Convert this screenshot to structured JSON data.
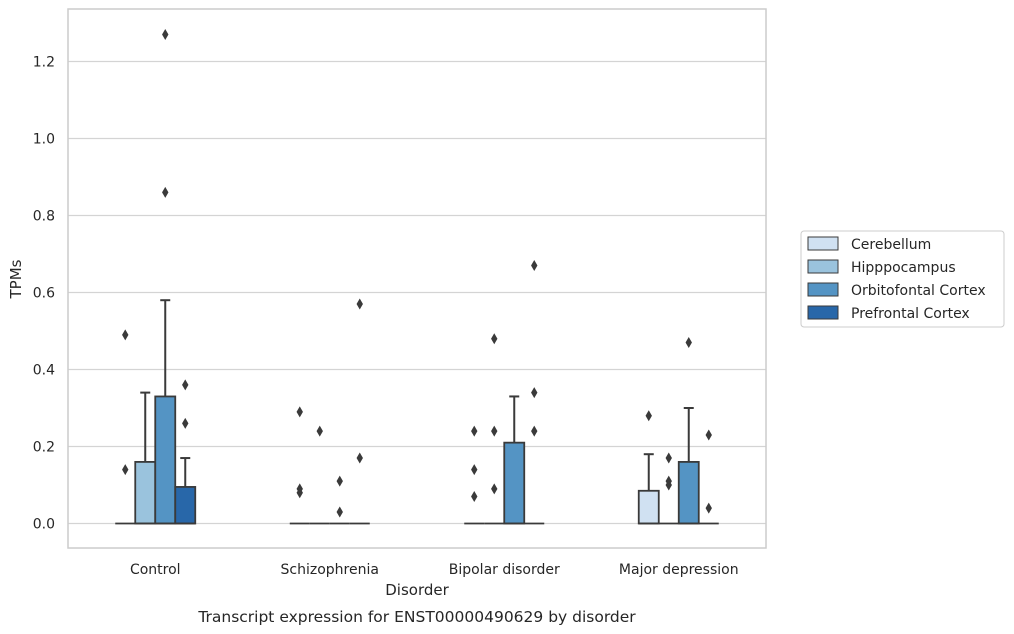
{
  "chart_data": {
    "type": "box",
    "caption": "Transcript expression for ENST00000490629 by disorder",
    "xlabel": "Disorder",
    "ylabel": "TPMs",
    "ylim": [
      -0.06,
      1.34
    ],
    "yticks": [
      0.0,
      0.2,
      0.4,
      0.6,
      0.8,
      1.0,
      1.2
    ],
    "ytick_labels": [
      "0.0",
      "0.2",
      "0.4",
      "0.6",
      "0.8",
      "1.0",
      "1.2"
    ],
    "grid": "horizontal",
    "legend_position": "right",
    "categories": [
      "Control",
      "Schizophrenia",
      "Bipolar disorder",
      "Major depression"
    ],
    "series": [
      {
        "name": "Cerebellum",
        "color": "#d0e1f2",
        "boxes": [
          {
            "q1": 0,
            "median": 0,
            "q3": 0,
            "whisker_low": 0,
            "whisker_high": 0,
            "outliers": [
              0.14,
              0.49
            ]
          },
          {
            "q1": 0,
            "median": 0,
            "q3": 0,
            "whisker_low": 0,
            "whisker_high": 0,
            "outliers": [
              0.08,
              0.09,
              0.29
            ]
          },
          {
            "q1": 0,
            "median": 0,
            "q3": 0,
            "whisker_low": 0,
            "whisker_high": 0,
            "outliers": [
              0.07,
              0.14,
              0.24
            ]
          },
          {
            "q1": 0,
            "median": 0,
            "q3": 0.085,
            "whisker_low": 0,
            "whisker_high": 0.18,
            "outliers": [
              0.28
            ]
          }
        ]
      },
      {
        "name": "Hipppocampus",
        "color": "#9ac3dd",
        "boxes": [
          {
            "q1": 0,
            "median": 0,
            "q3": 0.16,
            "whisker_low": 0,
            "whisker_high": 0.34,
            "outliers": []
          },
          {
            "q1": 0,
            "median": 0,
            "q3": 0,
            "whisker_low": 0,
            "whisker_high": 0,
            "outliers": [
              0.24
            ]
          },
          {
            "q1": 0,
            "median": 0,
            "q3": 0,
            "whisker_low": 0,
            "whisker_high": 0,
            "outliers": [
              0.09,
              0.24,
              0.48
            ]
          },
          {
            "q1": 0,
            "median": 0,
            "q3": 0,
            "whisker_low": 0,
            "whisker_high": 0,
            "outliers": [
              0.1,
              0.11,
              0.17
            ]
          }
        ]
      },
      {
        "name": "Orbitofontal Cortex",
        "color": "#5494c4",
        "boxes": [
          {
            "q1": 0,
            "median": 0,
            "q3": 0.33,
            "whisker_low": 0,
            "whisker_high": 0.58,
            "outliers": [
              0.86,
              1.27
            ]
          },
          {
            "q1": 0,
            "median": 0,
            "q3": 0,
            "whisker_low": 0,
            "whisker_high": 0,
            "outliers": [
              0.03,
              0.11
            ]
          },
          {
            "q1": 0,
            "median": 0,
            "q3": 0.21,
            "whisker_low": 0,
            "whisker_high": 0.33,
            "outliers": []
          },
          {
            "q1": 0,
            "median": 0,
            "q3": 0.16,
            "whisker_low": 0,
            "whisker_high": 0.3,
            "outliers": [
              0.47
            ]
          }
        ]
      },
      {
        "name": "Prefrontal Cortex",
        "color": "#2867a9",
        "boxes": [
          {
            "q1": 0,
            "median": 0,
            "q3": 0.095,
            "whisker_low": 0,
            "whisker_high": 0.17,
            "outliers": [
              0.26,
              0.36
            ]
          },
          {
            "q1": 0,
            "median": 0,
            "q3": 0,
            "whisker_low": 0,
            "whisker_high": 0,
            "outliers": [
              0.17,
              0.57
            ]
          },
          {
            "q1": 0,
            "median": 0,
            "q3": 0,
            "whisker_low": 0,
            "whisker_high": 0,
            "outliers": [
              0.24,
              0.34,
              0.67
            ]
          },
          {
            "q1": 0,
            "median": 0,
            "q3": 0,
            "whisker_low": 0,
            "whisker_high": 0,
            "outliers": [
              0.04,
              0.23
            ]
          }
        ]
      }
    ]
  }
}
